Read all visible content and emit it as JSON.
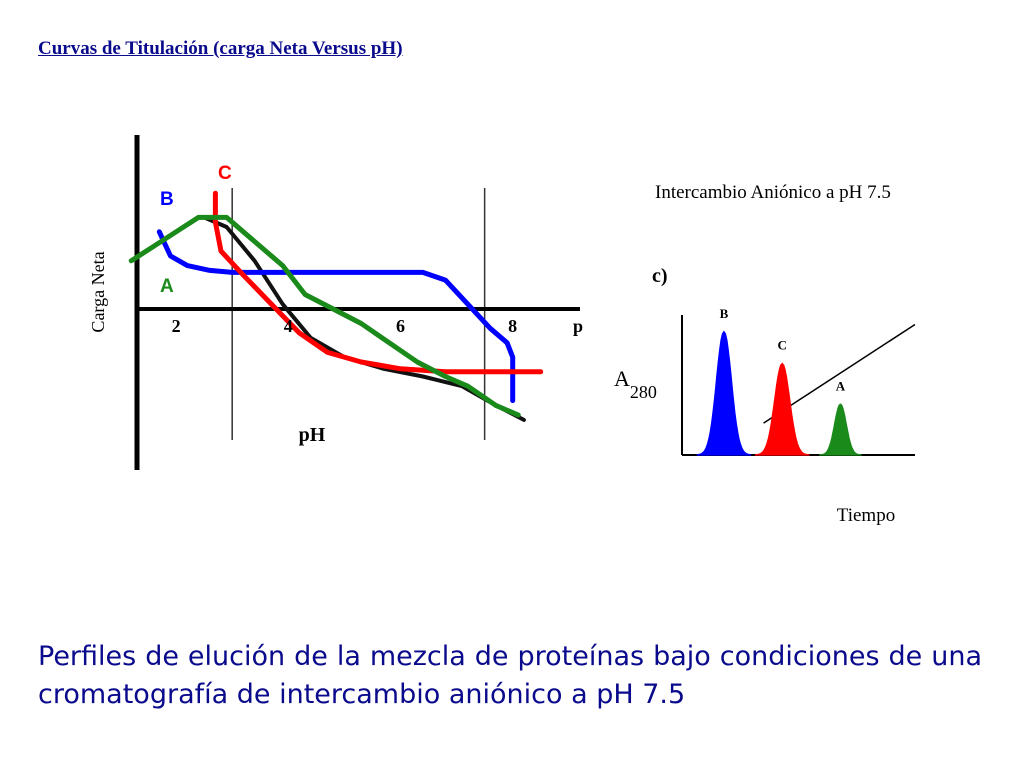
{
  "title": "Curvas de Titulación (carga Neta Versus pH)",
  "caption": "Perfiles de elución de la mezcla de proteínas bajo condiciones de  una cromatografía de intercambio aniónico a pH 7.5",
  "colors": {
    "A": "#1a8a1a",
    "B": "#0000ff",
    "C": "#ff0000",
    "text": "#0a0a8c",
    "axis": "#000000",
    "grid": "#333333"
  },
  "chart_data": [
    {
      "type": "line",
      "title": "",
      "xlabel": "pH",
      "ylabel": "Carga Neta",
      "x_ticks": [
        "2",
        "4",
        "6",
        "8"
      ],
      "x_tick_values": [
        2,
        4,
        6,
        8
      ],
      "x_axis_end_label": "p",
      "xlim": [
        1,
        9.2
      ],
      "ylim": [
        -1.6,
        1.7
      ],
      "vertical_gridlines_at": [
        3,
        7.5
      ],
      "series": [
        {
          "name": "A",
          "color": "#1a8a1a",
          "x": [
            1.2,
            1.6,
            2.0,
            2.4,
            2.9,
            3.3,
            3.9,
            4.3,
            4.8,
            5.3,
            5.8,
            6.3,
            6.8,
            7.2,
            7.7,
            8.1
          ],
          "y": [
            0.5,
            0.65,
            0.8,
            0.95,
            0.95,
            0.75,
            0.45,
            0.15,
            0.0,
            -0.15,
            -0.35,
            -0.55,
            -0.7,
            -0.8,
            -1.0,
            -1.1
          ]
        },
        {
          "name": "B",
          "color": "#0000ff",
          "x": [
            1.7,
            1.9,
            2.2,
            2.6,
            3.0,
            4.0,
            5.0,
            6.0,
            6.4,
            6.8,
            7.2,
            7.6,
            7.9,
            8.0,
            8.0
          ],
          "y": [
            0.8,
            0.55,
            0.45,
            0.4,
            0.38,
            0.38,
            0.38,
            0.38,
            0.38,
            0.3,
            0.05,
            -0.2,
            -0.35,
            -0.5,
            -0.95
          ]
        },
        {
          "name": "C",
          "color": "#ff0000",
          "x": [
            2.7,
            2.7,
            2.8,
            3.2,
            3.7,
            4.2,
            4.7,
            5.3,
            6.0,
            6.8,
            7.6,
            8.5
          ],
          "y": [
            1.2,
            0.9,
            0.6,
            0.35,
            0.05,
            -0.25,
            -0.45,
            -0.55,
            -0.62,
            -0.65,
            -0.65,
            -0.65
          ]
        },
        {
          "name": "",
          "color": "#111111",
          "x": [
            2.5,
            2.9,
            3.4,
            3.9,
            4.4,
            5.0,
            5.7,
            6.4,
            7.1,
            7.7,
            8.2
          ],
          "y": [
            0.95,
            0.85,
            0.5,
            0.05,
            -0.3,
            -0.5,
            -0.62,
            -0.7,
            -0.8,
            -1.0,
            -1.15
          ]
        }
      ],
      "annotations": [
        "A",
        "B",
        "C"
      ]
    },
    {
      "type": "line",
      "title": "Intercambio Aniónico a pH 7.5",
      "panel_label": "c)",
      "xlabel": "Tiempo",
      "ylabel": "A",
      "ylabel_subscript": "280",
      "xlim": [
        0,
        10
      ],
      "ylim": [
        0,
        10
      ],
      "peaks": [
        {
          "label": "B",
          "color": "#0000ff",
          "center": 1.8,
          "height": 8.5,
          "width": 0.45
        },
        {
          "label": "C",
          "color": "#ff0000",
          "center": 4.3,
          "height": 6.3,
          "width": 0.45
        },
        {
          "label": "A",
          "color": "#1a8a1a",
          "center": 6.8,
          "height": 3.5,
          "width": 0.35
        }
      ],
      "gradient_line": {
        "x": [
          3.5,
          10
        ],
        "y": [
          2.2,
          9.0
        ]
      }
    }
  ]
}
